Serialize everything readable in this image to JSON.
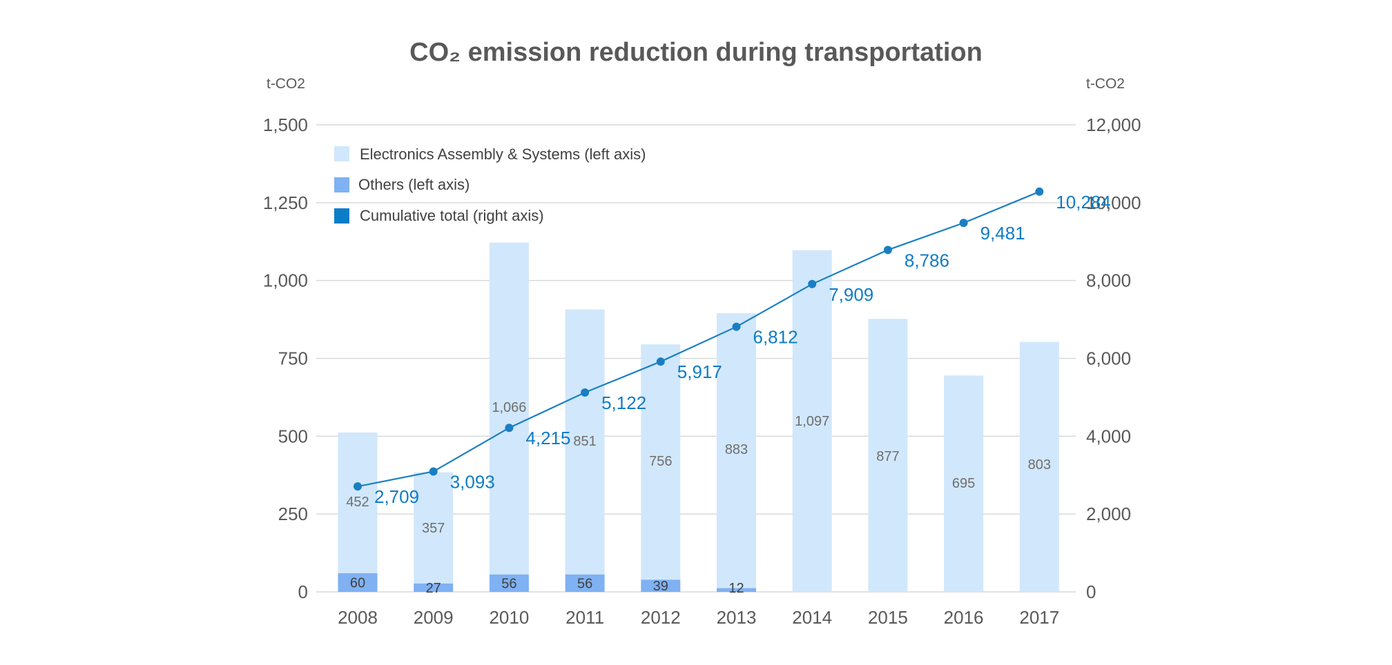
{
  "chart_data": {
    "type": "bar+line",
    "title": "CO₂ emission reduction during transportation",
    "left_unit": "t-CO2",
    "right_unit": "t-CO2",
    "categories": [
      "2008",
      "2009",
      "2010",
      "2011",
      "2012",
      "2013",
      "2014",
      "2015",
      "2016",
      "2017"
    ],
    "left_ylim": [
      0,
      1500
    ],
    "left_ticks": [
      "0",
      "250",
      "500",
      "750",
      "1,000",
      "1,250",
      "1,500"
    ],
    "left_tick_values": [
      0,
      250,
      500,
      750,
      1000,
      1250,
      1500
    ],
    "right_ylim": [
      0,
      12000
    ],
    "right_ticks": [
      "0",
      "2,000",
      "4,000",
      "6,000",
      "8,000",
      "10,000",
      "12,000"
    ],
    "right_tick_values": [
      0,
      2000,
      4000,
      6000,
      8000,
      10000,
      12000
    ],
    "grid": true,
    "legend_position": "top-left",
    "series": [
      {
        "name": "Electronics Assembly & Systems (left axis)",
        "axis": "left",
        "kind": "stacked-bar",
        "color": "#d1e7fb",
        "values": [
          452,
          357,
          1066,
          851,
          756,
          883,
          1097,
          877,
          695,
          803
        ],
        "labels": [
          "452",
          "357",
          "1,066",
          "851",
          "756",
          "883",
          "1,097",
          "877",
          "695",
          "803"
        ]
      },
      {
        "name": "Others (left axis)",
        "axis": "left",
        "kind": "stacked-bar",
        "color": "#7fb1f3",
        "values": [
          60,
          27,
          56,
          56,
          39,
          12,
          null,
          null,
          null,
          null
        ],
        "labels": [
          "60",
          "27",
          "56",
          "56",
          "39",
          "12",
          "",
          "",
          "",
          ""
        ]
      },
      {
        "name": "Cumulative total (right axis)",
        "axis": "right",
        "kind": "line",
        "color": "#0a7dc9",
        "values": [
          2709,
          3093,
          4215,
          5122,
          5917,
          6812,
          7909,
          8786,
          9481,
          10284
        ],
        "labels": [
          "2,709",
          "3,093",
          "4,215",
          "5,122",
          "5,917",
          "6,812",
          "7,909",
          "8,786",
          "9,481",
          "10,284"
        ]
      }
    ]
  }
}
